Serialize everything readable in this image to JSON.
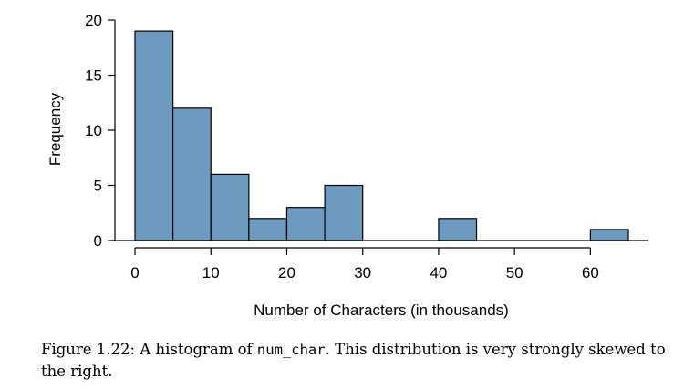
{
  "chart_data": {
    "type": "bar",
    "title": "",
    "xlabel": "Number of Characters (in thousands)",
    "ylabel": "Frequency",
    "bin_edges": [
      0,
      5,
      10,
      15,
      20,
      25,
      30,
      35,
      40,
      45,
      50,
      55,
      60,
      65
    ],
    "values": [
      19,
      12,
      6,
      2,
      3,
      5,
      0,
      0,
      2,
      0,
      0,
      0,
      1
    ],
    "xlim": [
      0,
      65
    ],
    "ylim": [
      0,
      20
    ],
    "x_ticks": [
      0,
      10,
      20,
      30,
      40,
      50,
      60
    ],
    "y_ticks": [
      0,
      5,
      10,
      15,
      20
    ],
    "bar_color": "#6f9abf",
    "grid": false
  },
  "caption": {
    "prefix": "Figure 1.22: A histogram of ",
    "code": "num_char",
    "suffix": ". This distribution is very strongly skewed to the right."
  }
}
